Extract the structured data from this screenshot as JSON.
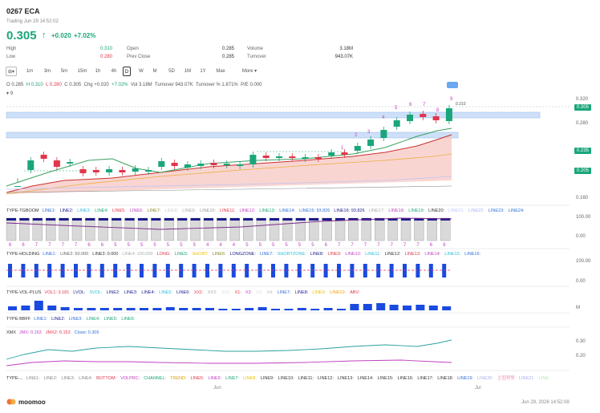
{
  "header": {
    "code": "0267",
    "name": "ECA",
    "status": "Trading Jun 29 14:52:02",
    "price": "0.305",
    "change": "+0.020",
    "change_pct": "+7.02%"
  },
  "stats": {
    "high_label": "High",
    "high": "0.310",
    "low_label": "Low",
    "low": "0.280",
    "open_label": "Open",
    "open": "0.285",
    "prev_close_label": "Prev Close",
    "prev_close": "0.285",
    "volume_label": "Volume",
    "volume": "3.18M",
    "turnover_label": "Turnover",
    "turnover": "943.07K"
  },
  "toolbar": {
    "dropdown": "⊞",
    "periods": [
      "1m",
      "3m",
      "5m",
      "15m",
      "1h",
      "4h",
      "D",
      "W",
      "M",
      "5D",
      "1M",
      "1Y",
      "Max"
    ],
    "active": "D",
    "more": "More"
  },
  "info_line": {
    "o": "O 0.285",
    "h": "H 0.310",
    "l": "L 0.280",
    "c": "C 0.305",
    "chg": "Chg +0.020",
    "chgp": "+7.02%",
    "vol": "Vol 3.18M",
    "turnover": "Turnover 943.07K",
    "turnover_pct": "Turnover % 1.871%",
    "pe": "P/E 0.000",
    "collapse": "9"
  },
  "price_axis": {
    "p320": "0.320",
    "p280": "0.280",
    "p160": "0.160",
    "tag_price": "0.305",
    "tag_235": "0.235",
    "tag_205": "0.205",
    "high_note": "0.310"
  },
  "indicators": {
    "tgboom": {
      "title": "TYPE-TGBOOM",
      "lines": [
        "LINE1:",
        "LINE2:",
        "LINE3:",
        "LINE4:",
        "LINE5:",
        "LINE6:",
        "LINE7:",
        "LINE8:",
        "LINE9:",
        "LINE10:",
        "LINE11:",
        "LINE12:",
        "LINE13:",
        "LINE14:",
        "LINE15: 93.826",
        "LINE16: 93.826",
        "LINE17:",
        "LINE18:",
        "LINE19:",
        "LINE20:",
        "LINE21:",
        "LINE22:",
        "LINE23:",
        "LINE24:"
      ],
      "colors": [
        "#2f6fd8",
        "#1a1a8a",
        "#2bbfd8",
        "#1aa67a",
        "#e0364a",
        "#c040c0",
        "#8a8a2a",
        "#d0d0d0",
        "#aaaaaa",
        "#999999",
        "#e0364a",
        "#c040c0",
        "#1aa67a",
        "#2f6fd8",
        "#2f6fd8",
        "#1a1a8a",
        "#aaaaaa",
        "#c040c0",
        "#1aa67a",
        "#333333",
        "#c0c8ff",
        "#aab0f0",
        "#2f6fd8",
        "#2f6fd8"
      ],
      "axis_top": "100.00",
      "axis_bottom": "0.00",
      "counts": [
        "6",
        "6",
        "7",
        "7",
        "7",
        "7",
        "6",
        "6",
        "5",
        "5",
        "5",
        "5",
        "5",
        "5",
        "5",
        "4",
        "4",
        "4",
        "5",
        "5",
        "5",
        "5",
        "5",
        "5",
        "6",
        "7",
        "7",
        "7",
        "7",
        "7",
        "7",
        "7",
        "6",
        "6"
      ]
    },
    "holding": {
      "title": "TYPE-HOLDING",
      "lines": [
        "LINE1:",
        "LINE2: 50.000",
        "LINE3: 0.000",
        "LINE4: 100.000",
        "LONG:",
        "LINE5:",
        "SHORT:",
        "LINE6:",
        "LONGZONE:",
        "LINE7:",
        "SHORTZONE:",
        "LINE8:",
        "LINE9:",
        "LINE10:",
        "LINE11:",
        "LINE12:",
        "LINE13:",
        "LINE14:",
        "LINE15:",
        "LINE16:"
      ],
      "colors": [
        "#2f6fd8",
        "#666666",
        "#333333",
        "#aaaaaa",
        "#e0364a",
        "#1aa67a",
        "#f0c000",
        "#8a8a2a",
        "#1a1a8a",
        "#2f6fd8",
        "#2bbfd8",
        "#1a1a8a",
        "#e0364a",
        "#c040c0",
        "#2bbfd8",
        "#333333",
        "#e0364a",
        "#c040c0",
        "#2bbfd8",
        "#2f6fd8"
      ],
      "axis_top": "100.00",
      "axis_bottom": "0.00"
    },
    "volplus": {
      "title": "TYPE-VOL-PLUS",
      "lines": [
        "VOL1: 3.181",
        "LVOL:",
        "SVOL:",
        "LINE2:",
        "LINE3:",
        "LINE4:",
        "LINE5:",
        "LINE6:",
        "XX1:",
        "XX2:",
        "XX3:",
        "X1:",
        "X2:",
        "X3:",
        "X4:",
        "LINE7:",
        "LINE8:",
        "LINE9:",
        "LINE10:",
        "ABV:"
      ],
      "colors": [
        "#e0364a",
        "#1a1a8a",
        "#2bbfd8",
        "#1a1a8a",
        "#1a1a8a",
        "#1a1a8a",
        "#2bbfd8",
        "#1a1a8a",
        "#e0364a",
        "#aaaaaa",
        "#dddddd",
        "#e0364a",
        "#c040c0",
        "#dddddd",
        "#c0c0c0",
        "#2f6fd8",
        "#1a1a8a",
        "#f0c000",
        "#f0a000",
        "#e0364a"
      ],
      "axis": "M"
    },
    "bbff": {
      "title": "TYPE-BBFF",
      "lines": [
        "LINE1:",
        "LINE2:",
        "LINE3:",
        "LINE4:",
        "LINE5:",
        "LINE6:"
      ],
      "colors": [
        "#2f6fd8",
        "#1a1a8a",
        "#2f6fd8",
        "#1aa67a",
        "#1aa67a",
        "#1aa67a"
      ]
    },
    "xmx": {
      "title": "XMX",
      "lines": [
        "JMX: 0.153",
        "JMX2: 0.153",
        "Close: 0.305"
      ],
      "colors": [
        "#c040c0",
        "#e0364a",
        "#2f6fd8"
      ],
      "axis_top": "0.30",
      "axis_mid": "0.20"
    },
    "type8": {
      "title": "TYPE-...",
      "lines": [
        "LINE1:",
        "LINE2:",
        "LINE3:",
        "LINE4:",
        "BOTTOM:",
        "VOLPRC:",
        "CHANNEL:",
        "TREND:",
        "LINE5:",
        "LINE6:",
        "LINE7:",
        "LINE8:",
        "LINE9:",
        "LINE10:",
        "LINE11:",
        "LINE12:",
        "LINE13:",
        "LINE14:",
        "LINE15:",
        "LINE16:",
        "LINE17:",
        "LINE18:",
        "LINE19:",
        "LINE20:",
        "主图预警",
        "LINE21:",
        "LINE"
      ],
      "colors": [
        "#888888",
        "#888888",
        "#888888",
        "#888888",
        "#e0364a",
        "#c040c0",
        "#1aa67a",
        "#e0a000",
        "#e0364a",
        "#c040c0",
        "#1aa67a",
        "#f0c000",
        "#333333",
        "#333333",
        "#333333",
        "#333333",
        "#333333",
        "#333333",
        "#333333",
        "#333333",
        "#333333",
        "#333333",
        "#2f6fd8",
        "#aab0f0",
        "#f0a0c0",
        "#aab0f0",
        "#c0e0c0"
      ]
    }
  },
  "x_axis": {
    "jun": "Jun",
    "jul": "Jul"
  },
  "footer": {
    "brand": "moomoo",
    "timestamp": "Jun 29, 2026 14:52:08"
  },
  "candles_wave_labels": [
    "1",
    "2",
    "3",
    "4",
    "5",
    "6",
    "7",
    "8",
    "9"
  ]
}
